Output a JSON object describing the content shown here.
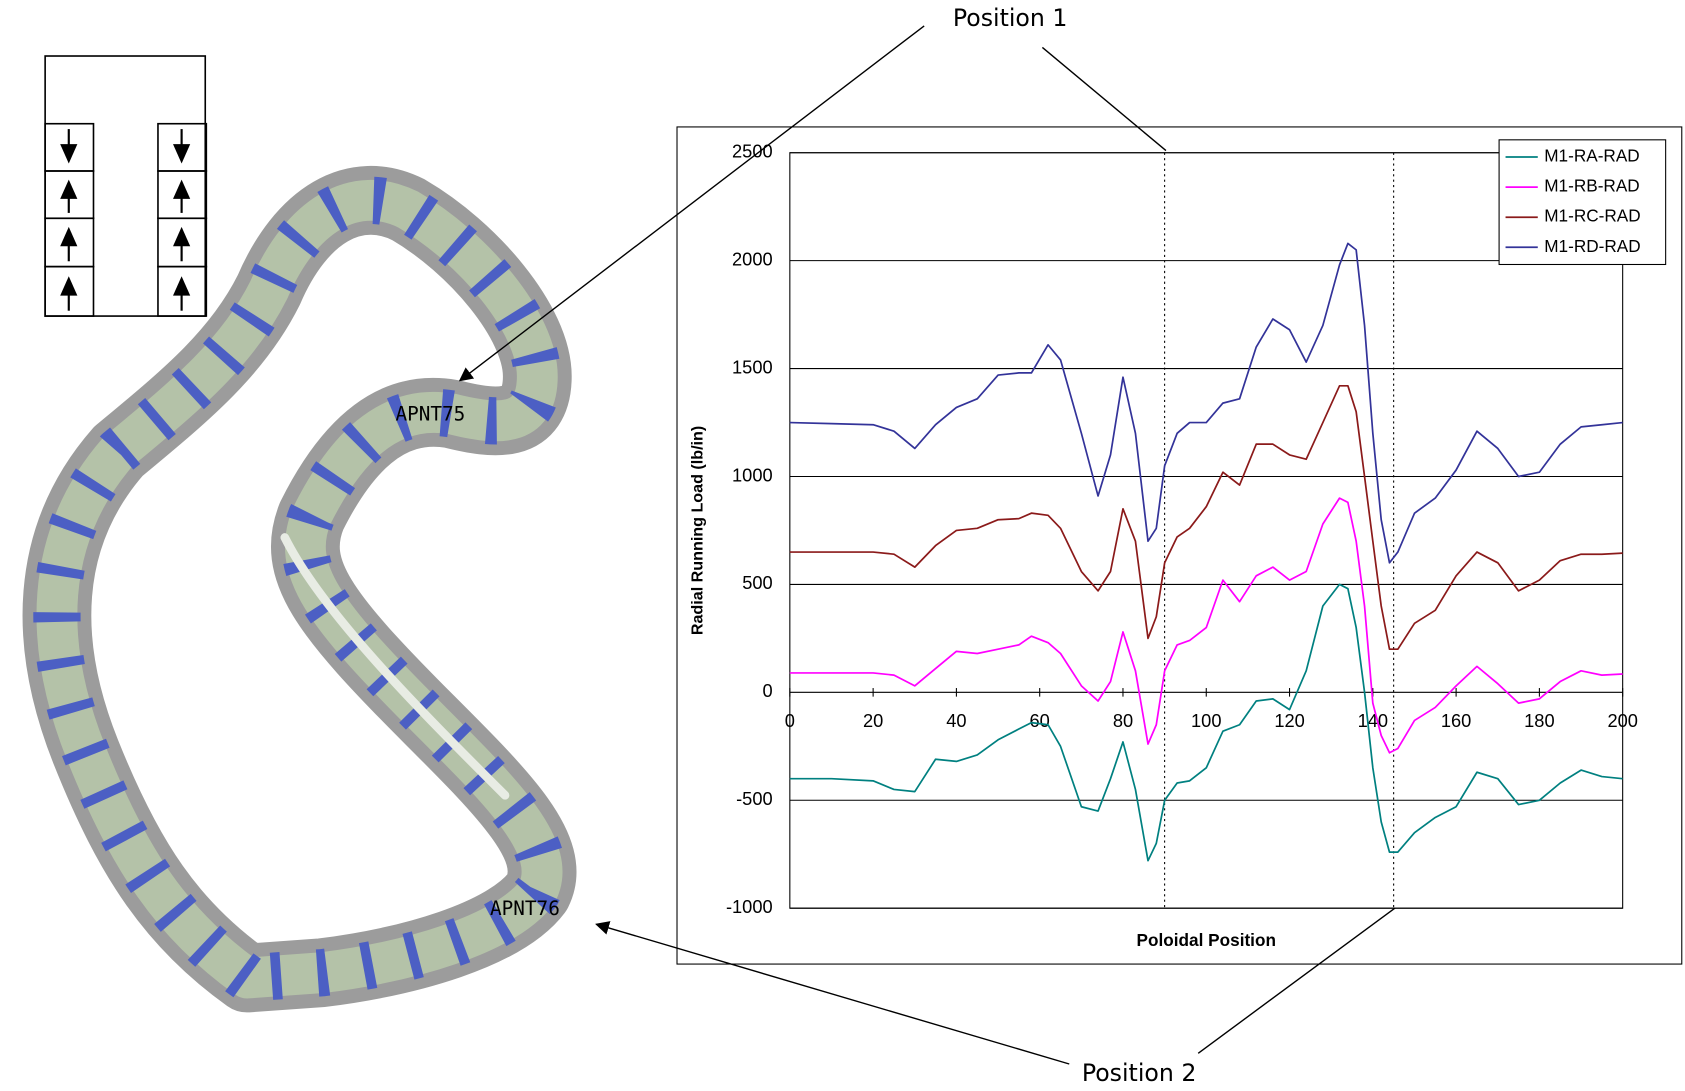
{
  "chart_data": {
    "type": "line",
    "title_annotations": [
      "Position 1",
      "Position 2"
    ],
    "xlabel": "Poloidal Position",
    "ylabel": "Radial Running Load (lb/in)",
    "xlim": [
      0,
      200
    ],
    "xticks": [
      0,
      20,
      40,
      60,
      80,
      100,
      120,
      140,
      160,
      180,
      200
    ],
    "ylim": [
      -1000,
      2500
    ],
    "yticks": [
      -1000,
      -500,
      0,
      500,
      1000,
      1500,
      2000,
      2500
    ],
    "grid": true,
    "legend": "upper right",
    "reference_lines_x": [
      90,
      145
    ],
    "x": [
      0,
      10,
      20,
      25,
      30,
      35,
      40,
      45,
      50,
      55,
      58,
      62,
      65,
      70,
      74,
      77,
      80,
      83,
      86,
      88,
      90,
      93,
      96,
      100,
      104,
      108,
      112,
      116,
      120,
      124,
      128,
      132,
      134,
      136,
      138,
      140,
      142,
      144,
      146,
      150,
      155,
      160,
      165,
      170,
      175,
      180,
      185,
      190,
      195,
      200
    ],
    "series": [
      {
        "name": "M1-RA-RAD",
        "color": "#008080",
        "values": [
          -400,
          -400,
          -410,
          -450,
          -460,
          -310,
          -320,
          -290,
          -220,
          -170,
          -140,
          -150,
          -250,
          -530,
          -550,
          -400,
          -230,
          -450,
          -780,
          -700,
          -500,
          -420,
          -410,
          -350,
          -180,
          -150,
          -40,
          -30,
          -80,
          100,
          400,
          500,
          480,
          300,
          0,
          -350,
          -600,
          -740,
          -740,
          -650,
          -580,
          -530,
          -370,
          -400,
          -520,
          -500,
          -420,
          -360,
          -390,
          -400
        ]
      },
      {
        "name": "M1-RB-RAD",
        "color": "#ff00ff",
        "values": [
          90,
          90,
          90,
          80,
          30,
          110,
          190,
          180,
          200,
          220,
          260,
          230,
          180,
          30,
          -40,
          50,
          280,
          100,
          -240,
          -150,
          100,
          220,
          240,
          300,
          520,
          420,
          540,
          580,
          520,
          560,
          780,
          900,
          880,
          700,
          400,
          -50,
          -200,
          -280,
          -260,
          -130,
          -70,
          30,
          120,
          40,
          -50,
          -30,
          50,
          100,
          80,
          85
        ]
      },
      {
        "name": "M1-RC-RAD",
        "color": "#8b1a1a",
        "values": [
          650,
          650,
          650,
          640,
          580,
          680,
          750,
          760,
          800,
          805,
          830,
          820,
          760,
          560,
          470,
          560,
          850,
          700,
          250,
          350,
          600,
          720,
          760,
          860,
          1020,
          960,
          1150,
          1150,
          1100,
          1080,
          1250,
          1420,
          1420,
          1300,
          1000,
          700,
          400,
          200,
          200,
          320,
          380,
          540,
          650,
          600,
          470,
          520,
          610,
          640,
          640,
          645
        ]
      },
      {
        "name": "M1-RD-RAD",
        "color": "#333399",
        "values": [
          1250,
          1245,
          1240,
          1210,
          1130,
          1240,
          1320,
          1360,
          1470,
          1480,
          1480,
          1610,
          1540,
          1200,
          910,
          1100,
          1460,
          1200,
          700,
          760,
          1050,
          1200,
          1250,
          1250,
          1340,
          1360,
          1600,
          1730,
          1680,
          1530,
          1700,
          1980,
          2080,
          2050,
          1700,
          1200,
          800,
          600,
          650,
          830,
          900,
          1030,
          1210,
          1130,
          1000,
          1020,
          1150,
          1230,
          1240,
          1250
        ]
      }
    ]
  },
  "diagram": {
    "labels": [
      "APNT75",
      "APNT76"
    ]
  }
}
